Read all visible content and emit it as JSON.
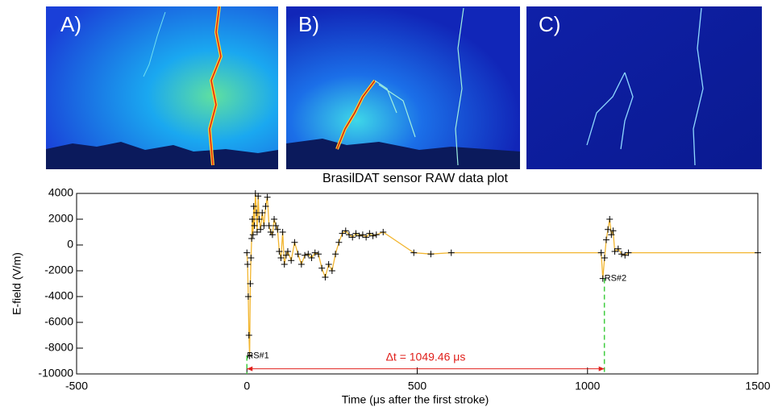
{
  "panels": [
    "A)",
    "B)",
    "C)"
  ],
  "chart_data": {
    "type": "line",
    "title": "BrasilDAT sensor RAW data plot",
    "x_label": "Time (μs after the first stroke)",
    "y_label": "E-field (V/m)",
    "xlim": [
      -500,
      1500
    ],
    "xticks": [
      -500,
      0,
      500,
      1000,
      1500
    ],
    "ylim": [
      -10000,
      4000
    ],
    "yticks": [
      -10000,
      -8000,
      -6000,
      -4000,
      -2000,
      0,
      2000,
      4000
    ],
    "color": "#f2b52e",
    "marker_color": "#000000",
    "x": [
      0,
      2,
      4,
      6,
      8,
      10,
      12,
      14,
      16,
      18,
      20,
      22,
      25,
      28,
      30,
      33,
      36,
      40,
      45,
      50,
      55,
      60,
      65,
      70,
      75,
      80,
      85,
      90,
      95,
      100,
      105,
      110,
      115,
      120,
      130,
      140,
      150,
      160,
      170,
      180,
      190,
      200,
      210,
      220,
      230,
      240,
      250,
      260,
      270,
      280,
      290,
      300,
      310,
      320,
      330,
      340,
      350,
      360,
      370,
      380,
      400,
      490,
      540,
      600,
      1040,
      1045,
      1050,
      1055,
      1060,
      1065,
      1070,
      1075,
      1080,
      1090,
      1100,
      1110,
      1120,
      1500
    ],
    "values": [
      -600,
      -1500,
      -4000,
      -7000,
      -8600,
      -3000,
      -1000,
      500,
      2000,
      800,
      3000,
      1500,
      4000,
      2500,
      1000,
      3800,
      2000,
      1200,
      2500,
      1500,
      3000,
      3700,
      1500,
      1000,
      800,
      2000,
      1500,
      1200,
      -500,
      -1000,
      1000,
      -1500,
      -800,
      -500,
      -1200,
      200,
      -700,
      -1500,
      -800,
      -700,
      -1000,
      -600,
      -700,
      -1800,
      -2500,
      -1500,
      -2000,
      -700,
      200,
      900,
      1100,
      800,
      600,
      900,
      700,
      800,
      600,
      900,
      700,
      800,
      1000,
      -600,
      -700,
      -600,
      -600,
      -2600,
      -1000,
      400,
      1200,
      2000,
      800,
      1100,
      -500,
      -300,
      -700,
      -800,
      -600,
      -600
    ],
    "strokes": [
      {
        "x": 0,
        "y": -8600,
        "label": "RS#1"
      },
      {
        "x": 1049.46,
        "y": -2600,
        "label": "RS#2"
      }
    ],
    "interval": {
      "start": 0,
      "end": 1049.46,
      "y": -9600,
      "label": "Δt = 1049.46 μs",
      "color": "#e0201b"
    },
    "stroke_line_color": "#3dcc3d"
  }
}
